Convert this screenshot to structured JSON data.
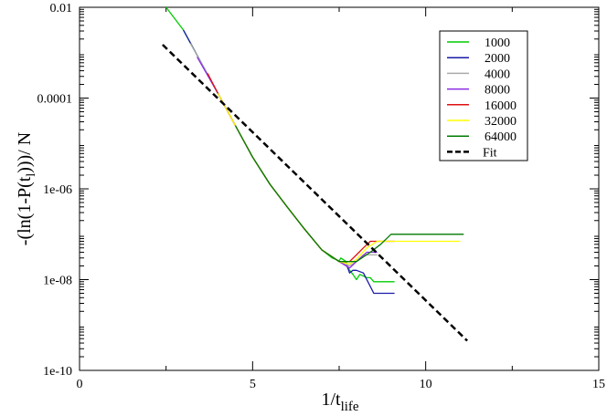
{
  "chart_data": {
    "type": "line",
    "xlabel": "1/t",
    "xlabel_sub": "life",
    "ylabel_parts": [
      "-(ln(1-P(t",
      "l",
      ")))/ N"
    ],
    "xlim": [
      0,
      15
    ],
    "ylim": [
      1e-10,
      0.01
    ],
    "y_scale": "log",
    "x_ticks": [
      0,
      5,
      10,
      15
    ],
    "x_tick_labels": [
      "0",
      "5",
      "10",
      "15"
    ],
    "y_ticks": [
      1e-10,
      1e-08,
      1e-06,
      0.0001,
      0.01
    ],
    "y_tick_labels": [
      "1e-10",
      "1e-08",
      "1e-06",
      "0.0001",
      "0.01"
    ],
    "grid": false,
    "legend_position": "top-right",
    "series": [
      {
        "name": "1000",
        "color": "#00cc00",
        "style": "solid",
        "x": [
          2.5,
          3,
          3.5,
          4,
          4.5,
          5,
          5.5,
          6,
          6.5,
          7,
          7.3,
          7.5,
          7.55,
          7.7,
          7.75,
          7.9,
          8.0,
          8.1,
          8.3,
          8.4,
          8.5,
          9.1
        ],
        "y": [
          0.01,
          0.00316,
          0.00063,
          0.000126,
          2.5e-05,
          5e-06,
          1.26e-06,
          3.98e-07,
          1.3e-07,
          4.5e-08,
          3e-08,
          2.6e-08,
          3e-08,
          2.5e-08,
          1.8e-08,
          1.3e-08,
          1e-08,
          1.3e-08,
          1.1e-08,
          1.1e-08,
          9e-09,
          9e-09
        ]
      },
      {
        "name": "2000",
        "color": "#1a1aa8",
        "style": "solid",
        "x": [
          3,
          3.5,
          4,
          4.5,
          5,
          5.5,
          6,
          6.5,
          7,
          7.5,
          7.7,
          7.8,
          7.9,
          8.0,
          8.2,
          8.5,
          9.1
        ],
        "y": [
          0.00316,
          0.00063,
          0.000126,
          2.5e-05,
          5e-06,
          1.26e-06,
          3.98e-07,
          1.3e-07,
          4.5e-08,
          2.5e-08,
          2.3e-08,
          1.4e-08,
          1.6e-08,
          1.6e-08,
          1.4e-08,
          5e-09,
          5e-09
        ]
      },
      {
        "name": "4000",
        "color": "#aaaaaa",
        "style": "solid",
        "x": [
          3.2,
          3.5,
          4,
          4.5,
          5,
          5.5,
          6,
          6.5,
          7,
          7.5,
          7.8,
          8.0,
          8.2,
          8.5,
          8.6
        ],
        "y": [
          0.0016,
          0.00063,
          0.000126,
          2.5e-05,
          5e-06,
          1.26e-06,
          3.98e-07,
          1.3e-07,
          4.5e-08,
          2.5e-08,
          2e-08,
          2.5e-08,
          3.5e-08,
          3.5e-08,
          3.5e-08
        ]
      },
      {
        "name": "8000",
        "color": "#8a2be2",
        "style": "solid",
        "x": [
          3.4,
          4,
          4.5,
          5,
          5.5,
          6,
          6.5,
          7,
          7.5,
          7.8,
          8.0,
          8.3,
          8.6
        ],
        "y": [
          0.0008,
          0.000126,
          2.5e-05,
          5e-06,
          1.26e-06,
          3.98e-07,
          1.3e-07,
          4.5e-08,
          2.5e-08,
          1.8e-08,
          2.5e-08,
          4e-08,
          4e-08
        ]
      },
      {
        "name": "16000",
        "color": "#e01010",
        "style": "solid",
        "x": [
          3.7,
          4,
          4.5,
          5,
          5.5,
          6,
          6.5,
          7,
          7.5,
          7.8,
          8.0,
          8.2,
          8.4,
          8.6,
          9.1
        ],
        "y": [
          0.00035,
          0.000126,
          2.5e-05,
          5e-06,
          1.26e-06,
          3.98e-07,
          1.3e-07,
          4.5e-08,
          2.5e-08,
          2.5e-08,
          3.5e-08,
          5e-08,
          7e-08,
          7e-08,
          7e-08
        ]
      },
      {
        "name": "32000",
        "color": "#ffff00",
        "style": "solid",
        "x": [
          4.0,
          4.5,
          5,
          5.5,
          6,
          6.5,
          7,
          7.5,
          7.8,
          8.0,
          8.3,
          8.6,
          9.0,
          11.0
        ],
        "y": [
          0.000126,
          2.5e-05,
          5e-06,
          1.26e-06,
          3.98e-07,
          1.3e-07,
          4.5e-08,
          2.5e-08,
          2.2e-08,
          2.8e-08,
          5e-08,
          7e-08,
          7e-08,
          7e-08
        ]
      },
      {
        "name": "64000",
        "color": "#007a00",
        "style": "solid",
        "x": [
          4.5,
          5,
          5.5,
          6,
          6.5,
          7,
          7.5,
          8.0,
          8.4,
          8.7,
          9.0,
          11.1
        ],
        "y": [
          2.5e-05,
          5e-06,
          1.26e-06,
          3.98e-07,
          1.3e-07,
          4.5e-08,
          2.5e-08,
          2.5e-08,
          4e-08,
          6e-08,
          1e-07,
          1e-07
        ]
      },
      {
        "name": "Fit",
        "color": "#000000",
        "style": "dashed",
        "x": [
          2.4,
          11.2
        ],
        "y": [
          0.0015,
          4.5e-10
        ]
      }
    ]
  }
}
